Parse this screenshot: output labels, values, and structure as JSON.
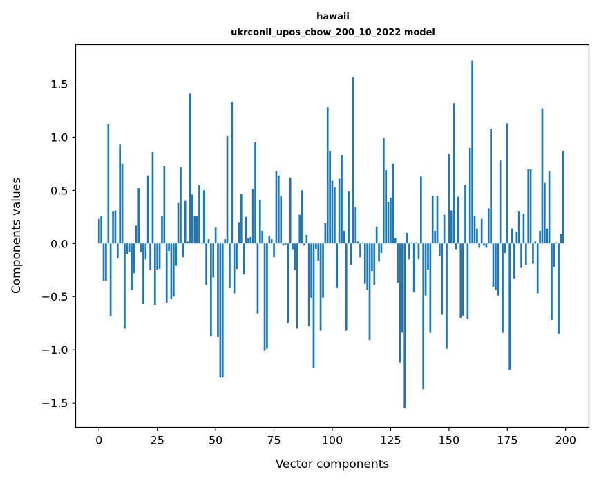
{
  "chart_data": {
    "type": "bar",
    "title": "hawaii",
    "subtitle": "ukrconll_upos_cbow_200_10_2022 model",
    "xlabel": "Vector components",
    "ylabel": "Components values",
    "xlim": [
      -10,
      210
    ],
    "ylim": [
      -1.73,
      1.87
    ],
    "xticks": [
      0,
      25,
      50,
      75,
      100,
      125,
      150,
      175,
      200
    ],
    "xtick_labels": [
      "0",
      "25",
      "50",
      "75",
      "100",
      "125",
      "150",
      "175",
      "200"
    ],
    "yticks": [
      -1.5,
      -1.0,
      -0.5,
      0.0,
      0.5,
      1.0,
      1.5
    ],
    "ytick_labels": [
      "−1.5",
      "−1.0",
      "−0.5",
      "0.0",
      "0.5",
      "1.0",
      "1.5"
    ],
    "grid": false,
    "bar_color": "#1f77b4",
    "values": [
      0.23,
      0.26,
      -0.35,
      -0.35,
      1.12,
      -0.68,
      0.3,
      0.31,
      -0.14,
      0.93,
      0.75,
      -0.8,
      -0.1,
      -0.08,
      -0.44,
      -0.28,
      0.17,
      0.52,
      -0.08,
      -0.57,
      -0.15,
      0.64,
      -0.25,
      0.86,
      -0.58,
      -0.25,
      -0.24,
      0.26,
      0.73,
      -0.56,
      -0.07,
      -0.52,
      -0.5,
      -0.21,
      0.38,
      0.72,
      -0.13,
      0.4,
      0.02,
      1.41,
      0.46,
      0.26,
      0.26,
      0.55,
      0.01,
      0.5,
      -0.39,
      0.04,
      -0.87,
      -0.32,
      0.15,
      -0.88,
      -1.26,
      -1.26,
      0.04,
      1.01,
      -0.42,
      1.33,
      -0.47,
      -0.24,
      0.2,
      0.47,
      -0.29,
      0.25,
      0.05,
      0.06,
      0.51,
      0.95,
      -0.66,
      0.41,
      0.12,
      -1.01,
      -0.99,
      0.07,
      0.04,
      -0.13,
      0.68,
      0.64,
      0.45,
      -0.02,
      -0.01,
      -0.75,
      0.62,
      -0.06,
      -0.25,
      -0.8,
      0.27,
      0.5,
      -0.02,
      0.08,
      -0.78,
      -0.51,
      -1.17,
      -0.05,
      -0.16,
      -0.82,
      -0.51,
      0.19,
      1.28,
      0.87,
      0.59,
      0.53,
      -0.42,
      0.61,
      0.83,
      0.12,
      -0.82,
      0.49,
      -0.2,
      1.56,
      0.34,
      0.02,
      -0.13,
      0.01,
      -0.38,
      -0.44,
      -0.91,
      -0.26,
      -0.39,
      0.16,
      -0.17,
      -0.09,
      0.99,
      0.69,
      0.39,
      0.43,
      0.75,
      0.05,
      -0.37,
      -1.12,
      -0.84,
      -1.55,
      0.1,
      -0.15,
      0.01,
      -0.46,
      0.01,
      -0.15,
      0.63,
      -1.37,
      -0.49,
      -0.25,
      -0.84,
      0.45,
      0.12,
      0.45,
      -0.12,
      -0.67,
      0.27,
      -0.99,
      0.84,
      0.31,
      1.32,
      -0.06,
      0.44,
      -0.7,
      -0.68,
      0.55,
      -0.71,
      0.9,
      1.72,
      0.26,
      0.14,
      -0.04,
      0.23,
      -0.02,
      -0.04,
      0.33,
      1.08,
      -0.41,
      -0.44,
      -0.49,
      0.78,
      -0.84,
      -0.09,
      1.13,
      -1.19,
      0.14,
      -0.33,
      0.11,
      0.3,
      -0.23,
      0.28,
      -0.2,
      0.7,
      0.7,
      -0.19,
      0.02,
      -0.47,
      0.12,
      1.27,
      0.57,
      0.14,
      0.68,
      -0.72,
      -0.22,
      0.01,
      -0.85,
      0.09,
      0.87
    ]
  }
}
